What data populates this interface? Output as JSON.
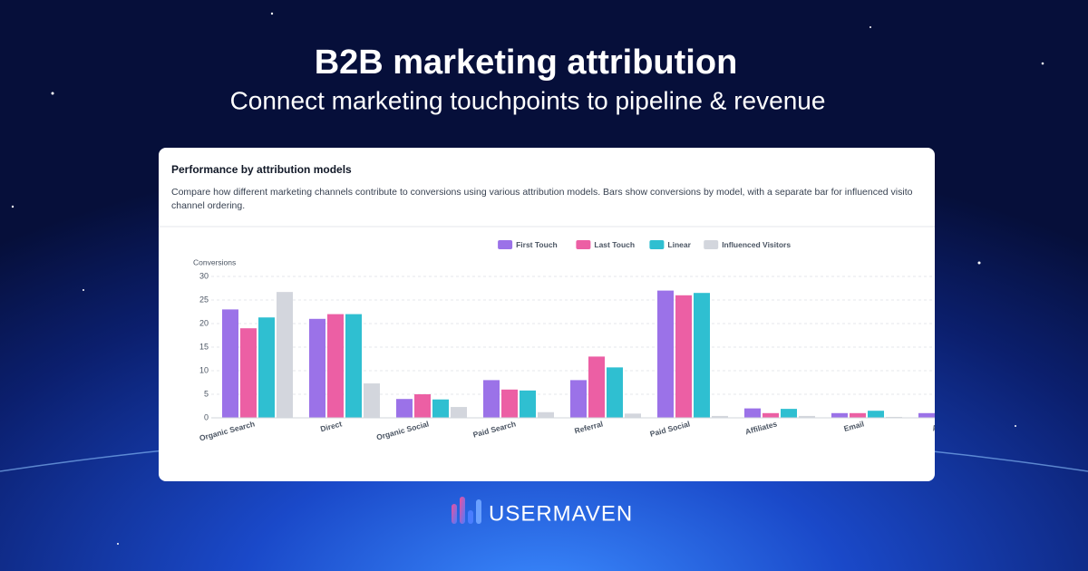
{
  "header": {
    "title": "B2B marketing attribution",
    "subtitle": "Connect marketing touchpoints to pipeline & revenue"
  },
  "brand": "USERMAVEN",
  "chart_data": {
    "type": "bar",
    "title": "Performance by attribution models",
    "description": [
      "Compare how different marketing channels contribute to conversions using various attribution models. Bars show conversions by model, with a separate bar for influenced visito",
      "channel ordering."
    ],
    "y_label": "Conversions",
    "categories": [
      "Organic Search",
      "Direct",
      "Organic Social",
      "Paid Search",
      "Referral",
      "Paid Social",
      "Affiliates",
      "Email",
      "Ai Se"
    ],
    "series": [
      {
        "name": "First Touch",
        "color": "#9b72e8",
        "values": [
          23,
          21,
          4,
          8,
          8,
          27,
          2,
          1,
          1
        ]
      },
      {
        "name": "Last Touch",
        "color": "#ec5fa4",
        "values": [
          19,
          22,
          5,
          6,
          13,
          26,
          1,
          1,
          null
        ]
      },
      {
        "name": "Linear",
        "color": "#2fbfd1",
        "values": [
          21.3,
          22,
          3.9,
          5.8,
          10.7,
          26.5,
          1.9,
          1.5,
          null
        ]
      },
      {
        "name": "Influenced Visitors",
        "color": "#d3d6dd",
        "values": [
          26.7,
          7.3,
          2.3,
          1.2,
          0.9,
          0.4,
          0.4,
          0.2,
          null
        ]
      }
    ],
    "ylim": [
      0,
      30
    ],
    "yticks": [
      0,
      5,
      10,
      15,
      20,
      25,
      30
    ],
    "grid": true,
    "legend": "top"
  }
}
